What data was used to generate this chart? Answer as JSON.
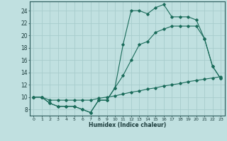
{
  "line1_x": [
    0,
    1,
    2,
    3,
    4,
    5,
    6,
    7,
    8,
    9,
    10,
    11,
    12,
    13,
    14,
    15,
    16,
    17,
    18,
    19,
    20,
    21,
    22,
    23
  ],
  "line1_y": [
    10,
    10,
    9,
    8.5,
    8.5,
    8.5,
    8,
    7.5,
    9.5,
    9.5,
    11.5,
    18.5,
    24,
    24,
    23.5,
    24.5,
    25,
    23,
    23,
    23,
    22.5,
    19.5,
    15,
    13
  ],
  "line2_x": [
    0,
    1,
    2,
    3,
    4,
    5,
    6,
    7,
    8,
    9,
    10,
    11,
    12,
    13,
    14,
    15,
    16,
    17,
    18,
    19,
    20,
    21,
    22,
    23
  ],
  "line2_y": [
    10,
    10,
    9,
    8.5,
    8.5,
    8.5,
    8,
    7.5,
    9.5,
    9.5,
    11.5,
    13.5,
    16,
    18.5,
    19,
    20.5,
    21,
    21.5,
    21.5,
    21.5,
    21.5,
    19.5,
    15,
    13
  ],
  "line3_x": [
    0,
    1,
    2,
    3,
    4,
    5,
    6,
    7,
    8,
    9,
    10,
    11,
    12,
    13,
    14,
    15,
    16,
    17,
    18,
    19,
    20,
    21,
    22,
    23
  ],
  "line3_y": [
    10,
    10,
    9.5,
    9.5,
    9.5,
    9.5,
    9.5,
    9.5,
    9.8,
    10.0,
    10.2,
    10.5,
    10.8,
    11.0,
    11.3,
    11.5,
    11.8,
    12.0,
    12.2,
    12.5,
    12.7,
    12.9,
    13.1,
    13.3
  ],
  "line_color": "#1a6b5a",
  "bg_color": "#c0e0e0",
  "grid_color": "#a8cccc",
  "xlabel": "Humidex (Indice chaleur)",
  "xlim": [
    -0.5,
    23.5
  ],
  "ylim": [
    7,
    25.5
  ],
  "yticks": [
    8,
    10,
    12,
    14,
    16,
    18,
    20,
    22,
    24
  ],
  "xticks": [
    0,
    1,
    2,
    3,
    4,
    5,
    6,
    7,
    8,
    9,
    10,
    11,
    12,
    13,
    14,
    15,
    16,
    17,
    18,
    19,
    20,
    21,
    22,
    23
  ]
}
